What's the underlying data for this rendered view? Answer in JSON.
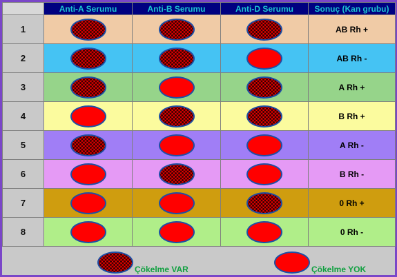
{
  "columns": [
    "",
    "Anti-A Serumu",
    "Anti-B Serumu",
    "Anti-D Serumu",
    "Sonuç (Kan grubu)"
  ],
  "colors": {
    "frame": "#7a46c8",
    "header_bg": "#000080",
    "header_text": "#1cc7d0",
    "drop_fill": "#ff0000",
    "drop_border": "#1d4fa6",
    "legend_text": "#10a040"
  },
  "rows": [
    {
      "num": "1",
      "bg": "#f0cba6",
      "anti_a": true,
      "anti_b": true,
      "anti_d": true,
      "result": "AB Rh +"
    },
    {
      "num": "2",
      "bg": "#45c3f3",
      "anti_a": true,
      "anti_b": true,
      "anti_d": false,
      "result": "AB Rh -"
    },
    {
      "num": "3",
      "bg": "#96d48a",
      "anti_a": true,
      "anti_b": false,
      "anti_d": true,
      "result": "A Rh +"
    },
    {
      "num": "4",
      "bg": "#fbfb9e",
      "anti_a": false,
      "anti_b": true,
      "anti_d": true,
      "result": "B Rh +"
    },
    {
      "num": "5",
      "bg": "#a07ef6",
      "anti_a": true,
      "anti_b": false,
      "anti_d": false,
      "result": "A Rh -"
    },
    {
      "num": "6",
      "bg": "#e59af5",
      "anti_a": false,
      "anti_b": true,
      "anti_d": false,
      "result": "B Rh -"
    },
    {
      "num": "7",
      "bg": "#cf9d0f",
      "anti_a": false,
      "anti_b": false,
      "anti_d": true,
      "result": "0 Rh +"
    },
    {
      "num": "8",
      "bg": "#b0ee89",
      "anti_a": false,
      "anti_b": false,
      "anti_d": false,
      "result": "0 Rh -"
    }
  ],
  "legend": {
    "agglutination": {
      "icon": "dotted-red-drop-icon",
      "label": "Çökelme VAR"
    },
    "no_agglutination": {
      "icon": "solid-red-drop-icon",
      "label": "Çökelme YOK"
    }
  }
}
